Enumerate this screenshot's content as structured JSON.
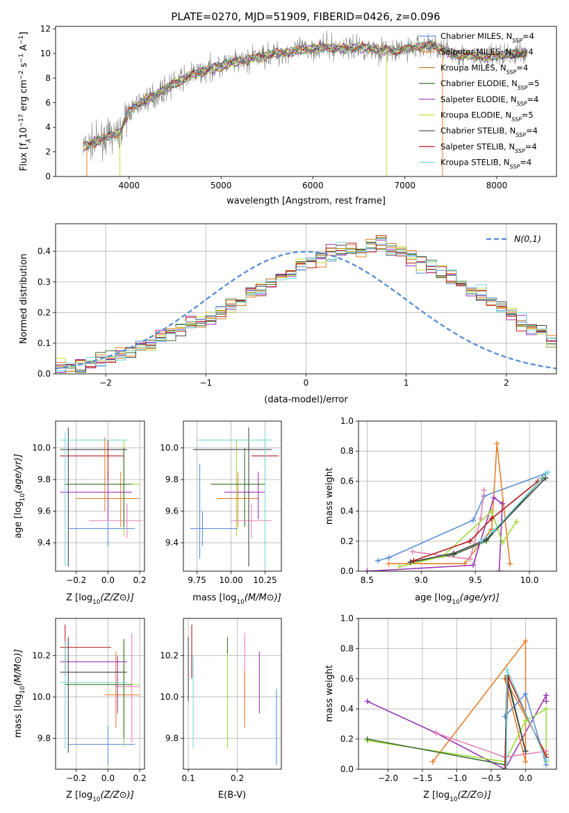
{
  "colors": {
    "Chabrier MILES": "#5b8fd9",
    "Salpeter MILES": "#e87e2a",
    "Kroupa MILES": "#c77a20",
    "Chabrier ELODIE": "#3b6e2f",
    "Salpeter ELODIE": "#9b35b5",
    "Kroupa ELODIE": "#c7dc3a",
    "Chabrier STELIB": "#444444",
    "Salpeter STELIB": "#b21b1b",
    "Kroupa STELIB": "#78d8de",
    "data": "#7f7f7f",
    "grid": "#b0b0b0",
    "gauss": "#5b8fd9",
    "pink": "#e57fb8",
    "lime": "#9ddb3c"
  },
  "chart_data": [
    {
      "id": "spectrum",
      "type": "line",
      "title": "PLATE=0270, MJD=51909, FIBERID=0426, z=0.096",
      "xlabel": "wavelength [Angstrom, rest frame]",
      "ylabel_parts": [
        "Flux [f",
        "λ",
        "10",
        "−17",
        " erg cm",
        "−2",
        " s",
        "−1",
        " A",
        "−1",
        "]"
      ],
      "xlim": [
        3200,
        8650
      ],
      "ylim": [
        0,
        12.2
      ],
      "xticks": [
        "4000",
        "5000",
        "6000",
        "7000",
        "8000"
      ],
      "xtick_values": [
        4000,
        5000,
        6000,
        7000,
        8000
      ],
      "yticks": [
        "0",
        "2",
        "4",
        "6",
        "8",
        "10",
        "12"
      ],
      "ytick_values": [
        0,
        2,
        4,
        6,
        8,
        10,
        12
      ],
      "continuum_x": [
        3500,
        3700,
        3900,
        4000,
        4100,
        4300,
        4500,
        4700,
        4900,
        5100,
        5300,
        5500,
        5700,
        5900,
        6100,
        6300,
        6500,
        6700,
        6900,
        7100,
        7300,
        7500,
        7700,
        7900,
        8100,
        8300
      ],
      "continuum_y": [
        2.4,
        3.0,
        3.6,
        5.3,
        5.9,
        6.7,
        7.6,
        8.3,
        8.8,
        9.2,
        9.5,
        9.9,
        10.1,
        10.3,
        10.5,
        10.4,
        10.5,
        10.3,
        10.2,
        10.5,
        10.7,
        10.0,
        9.8,
        9.7,
        9.9,
        10.1
      ],
      "legend": [
        {
          "name": "Chabrier MILES",
          "nssp": "4"
        },
        {
          "name": "Salpeter MILES",
          "nssp": "4"
        },
        {
          "name": "Kroupa MILES",
          "nssp": "4"
        },
        {
          "name": "Chabrier ELODIE",
          "nssp": "5"
        },
        {
          "name": "Salpeter ELODIE",
          "nssp": "4"
        },
        {
          "name": "Kroupa ELODIE",
          "nssp": "5"
        },
        {
          "name": "Chabrier STELIB",
          "nssp": "4"
        },
        {
          "name": "Salpeter STELIB",
          "nssp": "4"
        },
        {
          "name": "Kroupa STELIB",
          "nssp": "4"
        }
      ],
      "legend_prefix": "N",
      "legend_sub": "SSP",
      "legend_placement": "right"
    },
    {
      "id": "residuals",
      "type": "bar",
      "xlabel": "(data-model)/error",
      "ylabel": "Normed distribution",
      "xlim": [
        -2.5,
        2.5
      ],
      "ylim": [
        0,
        0.49
      ],
      "xticks": [
        "−2",
        "−1",
        "0",
        "1",
        "2"
      ],
      "xtick_values": [
        -2,
        -1,
        0,
        1,
        2
      ],
      "yticks": [
        "0.0",
        "0.1",
        "0.2",
        "0.3",
        "0.4"
      ],
      "ytick_values": [
        0,
        0.1,
        0.2,
        0.3,
        0.4
      ],
      "gauss_label": "N(0,1)",
      "bin_edges_start": -2.5,
      "bin_width": 0.1,
      "base_values": [
        0.02,
        0.025,
        0.03,
        0.035,
        0.045,
        0.055,
        0.065,
        0.075,
        0.085,
        0.1,
        0.12,
        0.13,
        0.15,
        0.165,
        0.17,
        0.18,
        0.2,
        0.22,
        0.24,
        0.26,
        0.28,
        0.3,
        0.32,
        0.34,
        0.355,
        0.37,
        0.38,
        0.39,
        0.4,
        0.41,
        0.4,
        0.42,
        0.43,
        0.41,
        0.4,
        0.38,
        0.36,
        0.35,
        0.33,
        0.31,
        0.29,
        0.27,
        0.26,
        0.24,
        0.22,
        0.2,
        0.17,
        0.15,
        0.13,
        0.11
      ],
      "grid": true
    },
    {
      "id": "age-vs-Z",
      "type": "scatter",
      "xlabel": "Z [log10(Z/Z⊙)]",
      "ylabel": "age [log10(age/yr)]",
      "xlim": [
        -0.33,
        0.23
      ],
      "ylim": [
        9.22,
        10.17
      ],
      "xticks": [
        "−0.2",
        "0.0",
        "0.2"
      ],
      "xtick_values": [
        -0.2,
        0,
        0.2
      ],
      "yticks": [
        "9.4",
        "9.6",
        "9.8",
        "10.0"
      ],
      "ytick_values": [
        9.4,
        9.6,
        9.8,
        10.0
      ]
    },
    {
      "id": "age-vs-mass",
      "type": "scatter",
      "xlabel": "mass [log10(M/M⊙)]",
      "xlim": [
        9.65,
        10.37
      ],
      "ylim": [
        9.22,
        10.17
      ],
      "xticks": [
        "9.75",
        "10.00",
        "10.25"
      ],
      "xtick_values": [
        9.75,
        10.0,
        10.25
      ],
      "yticks": [
        "9.4",
        "9.6",
        "9.8",
        "10.0"
      ],
      "ytick_values": [
        9.4,
        9.6,
        9.8,
        10.0
      ]
    },
    {
      "id": "massweight-vs-age",
      "type": "line",
      "xlabel": "age [log10(age/yr)]",
      "ylabel": "mass weight",
      "xlim": [
        8.42,
        10.25
      ],
      "ylim": [
        0,
        1.0
      ],
      "xticks": [
        "8.5",
        "9.0",
        "9.5",
        "10.0"
      ],
      "xtick_values": [
        8.5,
        9.0,
        9.5,
        10.0
      ],
      "yticks": [
        "0.0",
        "0.2",
        "0.4",
        "0.6",
        "0.8",
        "1.0"
      ],
      "ytick_values": [
        0,
        0.2,
        0.4,
        0.6,
        0.8,
        1.0
      ],
      "grid": true,
      "series": [
        {
          "color": "#5b8fd9",
          "x": [
            8.6,
            8.7,
            9.48,
            9.58,
            10.15
          ],
          "y": [
            0.07,
            0.09,
            0.34,
            0.5,
            0.65
          ]
        },
        {
          "color": "#e87e2a",
          "x": [
            8.7,
            9.4,
            9.65,
            9.7,
            9.82
          ],
          "y": [
            0.05,
            0.05,
            0.28,
            0.85,
            0.05
          ]
        },
        {
          "color": "#e57fb8",
          "x": [
            8.92,
            9.45,
            9.55,
            9.58
          ],
          "y": [
            0.13,
            0.08,
            0.35,
            0.54
          ]
        },
        {
          "color": "#3b6e2f",
          "x": [
            8.9,
            9.3,
            9.6,
            10.12
          ],
          "y": [
            0.06,
            0.11,
            0.2,
            0.62
          ]
        },
        {
          "color": "#9b35b5",
          "x": [
            8.5,
            9.48,
            9.67,
            9.75,
            9.72
          ],
          "y": [
            0.0,
            0.04,
            0.49,
            0.45,
            0.0
          ]
        },
        {
          "color": "#9ddb3c",
          "x": [
            8.8,
            9.2,
            9.65,
            9.75,
            9.88
          ],
          "y": [
            0.03,
            0.1,
            0.4,
            0.19,
            0.33
          ]
        },
        {
          "color": "#444444",
          "x": [
            8.9,
            9.3,
            9.6,
            10.15
          ],
          "y": [
            0.06,
            0.12,
            0.21,
            0.62
          ]
        },
        {
          "color": "#b21b1b",
          "x": [
            8.93,
            9.45,
            9.65,
            10.08
          ],
          "y": [
            0.07,
            0.2,
            0.35,
            0.6
          ]
        },
        {
          "color": "#78d8de",
          "x": [
            9.55,
            9.67,
            10.17
          ],
          "y": [
            0.2,
            0.27,
            0.66
          ]
        }
      ]
    },
    {
      "id": "mass-vs-Z",
      "type": "scatter",
      "xlabel": "Z [log10(Z/Z⊙)]",
      "ylabel": "mass [log10(M/M⊙)]",
      "xlim": [
        -0.33,
        0.23
      ],
      "ylim": [
        9.65,
        10.38
      ],
      "xticks": [
        "−0.2",
        "0.0",
        "0.2"
      ],
      "xtick_values": [
        -0.2,
        0,
        0.2
      ],
      "yticks": [
        "9.8",
        "10.0",
        "10.2"
      ],
      "ytick_values": [
        9.8,
        10.0,
        10.2
      ]
    },
    {
      "id": "mass-vs-EBV",
      "type": "scatter",
      "xlabel": "E(B-V)",
      "xlim": [
        0.09,
        0.29
      ],
      "ylim": [
        9.65,
        10.38
      ],
      "xticks": [
        "0.1",
        "0.2"
      ],
      "xtick_values": [
        0.1,
        0.2
      ],
      "yticks": [
        "9.8",
        "10.0",
        "10.2"
      ],
      "ytick_values": [
        9.8,
        10.0,
        10.2
      ]
    },
    {
      "id": "massweight-vs-Z",
      "type": "line",
      "xlabel": "Z [log10(Z/Z⊙)]",
      "ylabel": "mass weight",
      "xlim": [
        -2.43,
        0.45
      ],
      "ylim": [
        0,
        1.0
      ],
      "xticks": [
        "−2.0",
        "−1.5",
        "−1.0",
        "−0.5",
        "0.0"
      ],
      "xtick_values": [
        -2.0,
        -1.5,
        -1.0,
        -0.5,
        0.0
      ],
      "yticks": [
        "0.0",
        "0.2",
        "0.4",
        "0.6",
        "0.8",
        "1.0"
      ],
      "ytick_values": [
        0,
        0.2,
        0.4,
        0.6,
        0.8,
        1.0
      ],
      "grid": true,
      "series": [
        {
          "color": "#9b35b5",
          "x": [
            -2.3,
            -1.3,
            -0.3,
            0.3,
            0.3
          ],
          "y": [
            0.45,
            0.24,
            0.0,
            0.49,
            0.45
          ]
        },
        {
          "color": "#e87e2a",
          "x": [
            -1.35,
            0.0,
            0.0,
            -0.3,
            0.3
          ],
          "y": [
            0.05,
            0.85,
            0.05,
            0.6,
            0.1
          ]
        },
        {
          "color": "#9ddb3c",
          "x": [
            -2.3,
            -0.3,
            0.0,
            0.3,
            0.3
          ],
          "y": [
            0.19,
            0.05,
            0.32,
            0.4,
            0.05
          ]
        },
        {
          "color": "#3b6e2f",
          "x": [
            -2.3,
            -0.3,
            -0.27,
            0.0
          ],
          "y": [
            0.2,
            0.03,
            0.62,
            0.12
          ]
        },
        {
          "color": "#5b8fd9",
          "x": [
            -0.3,
            0.0,
            0.3
          ],
          "y": [
            0.35,
            0.5,
            0.03
          ]
        },
        {
          "color": "#e57fb8",
          "x": [
            -1.3,
            -0.3,
            0.3
          ],
          "y": [
            0.24,
            0.08,
            0.12
          ]
        },
        {
          "color": "#444444",
          "x": [
            -0.3,
            -0.27,
            0.0
          ],
          "y": [
            0.0,
            0.6,
            0.12
          ]
        },
        {
          "color": "#b21b1b",
          "x": [
            -0.3,
            -0.25,
            0.3
          ],
          "y": [
            0.0,
            0.61,
            0.08
          ]
        },
        {
          "color": "#78d8de",
          "x": [
            -0.28,
            -0.27,
            0.3
          ],
          "y": [
            0.0,
            0.66,
            0.06
          ]
        }
      ]
    }
  ],
  "errorbars": {
    "age_Z": [
      {
        "color": "#5b8fd9",
        "x": 0.0,
        "y": 9.49,
        "xlo": -0.25,
        "xhi": 0.17,
        "ylo": 9.38,
        "yhi": 9.6
      },
      {
        "color": "#e87e2a",
        "x": 0.08,
        "y": 9.68,
        "xlo": -0.2,
        "xhi": 0.2,
        "ylo": 9.5,
        "yhi": 9.85
      },
      {
        "color": "#e57fb8",
        "x": 0.12,
        "y": 9.54,
        "xlo": -0.12,
        "xhi": 0.22,
        "ylo": 9.43,
        "yhi": 9.65
      },
      {
        "color": "#9b35b5",
        "x": 0.0,
        "y": 9.72,
        "xlo": -0.3,
        "xhi": 0.15,
        "ylo": 9.55,
        "yhi": 9.85
      },
      {
        "color": "#9ddb3c",
        "x": 0.1,
        "y": 9.77,
        "xlo": -0.28,
        "xhi": 0.2,
        "ylo": 9.44,
        "yhi": 10.05
      },
      {
        "color": "#3b6e2f",
        "x": 0.1,
        "y": 9.77,
        "xlo": -0.27,
        "xhi": 0.15,
        "ylo": 9.5,
        "yhi": 10.0
      },
      {
        "color": "#444444",
        "x": -0.25,
        "y": 9.99,
        "xlo": -0.3,
        "xhi": 0.12,
        "ylo": 9.25,
        "yhi": 10.13
      },
      {
        "color": "#b21b1b",
        "x": 0.0,
        "y": 9.95,
        "xlo": -0.3,
        "xhi": 0.1,
        "ylo": 9.8,
        "yhi": 10.05
      },
      {
        "color": "#78d8de",
        "x": -0.27,
        "y": 10.05,
        "xlo": -0.3,
        "xhi": 0.12,
        "ylo": 9.25,
        "yhi": 10.1
      },
      {
        "color": "#e87e2a",
        "x": -0.02,
        "y": 9.99,
        "xlo": -0.02,
        "xhi": -0.02,
        "ylo": 9.6,
        "yhi": 10.07
      }
    ],
    "age_mass": [
      {
        "color": "#5b8fd9",
        "x": 9.79,
        "y": 9.49,
        "xlo": 9.7,
        "xhi": 10.05,
        "ylo": 9.38,
        "yhi": 9.6
      },
      {
        "color": "#e87e2a",
        "x": 10.05,
        "y": 9.68,
        "xlo": 9.9,
        "xhi": 10.2,
        "ylo": 9.5,
        "yhi": 9.85
      },
      {
        "color": "#e57fb8",
        "x": 10.15,
        "y": 9.54,
        "xlo": 10.0,
        "xhi": 10.3,
        "ylo": 9.43,
        "yhi": 9.65
      },
      {
        "color": "#9b35b5",
        "x": 10.2,
        "y": 9.72,
        "xlo": 9.95,
        "xhi": 10.25,
        "ylo": 9.55,
        "yhi": 9.85
      },
      {
        "color": "#9ddb3c",
        "x": 10.04,
        "y": 9.77,
        "xlo": 9.85,
        "xhi": 10.25,
        "ylo": 9.44,
        "yhi": 10.05
      },
      {
        "color": "#3b6e2f",
        "x": 10.1,
        "y": 9.77,
        "xlo": 9.85,
        "xhi": 10.25,
        "ylo": 9.5,
        "yhi": 10.0
      },
      {
        "color": "#444444",
        "x": 10.13,
        "y": 9.99,
        "xlo": 9.72,
        "xhi": 10.3,
        "ylo": 9.25,
        "yhi": 10.13
      },
      {
        "color": "#b21b1b",
        "x": 10.25,
        "y": 9.95,
        "xlo": 10.15,
        "xhi": 10.35,
        "ylo": 9.8,
        "yhi": 10.05
      },
      {
        "color": "#78d8de",
        "x": 10.25,
        "y": 10.05,
        "xlo": 9.75,
        "xhi": 10.3,
        "ylo": 9.25,
        "yhi": 10.1
      },
      {
        "color": "#5b8fd9",
        "x": 9.77,
        "y": 9.6,
        "xlo": 9.77,
        "xhi": 9.77,
        "ylo": 9.3,
        "yhi": 9.9
      }
    ],
    "mass_Z": [
      {
        "color": "#5b8fd9",
        "x": 0.0,
        "y": 9.77,
        "xlo": -0.25,
        "xhi": 0.17,
        "ylo": 9.67,
        "yhi": 9.86
      },
      {
        "color": "#e87e2a",
        "x": 0.05,
        "y": 10.01,
        "xlo": -0.02,
        "xhi": 0.2,
        "ylo": 9.85,
        "yhi": 10.22
      },
      {
        "color": "#e57fb8",
        "x": 0.15,
        "y": 10.05,
        "xlo": 0.05,
        "xhi": 0.2,
        "ylo": 9.78,
        "yhi": 10.31
      },
      {
        "color": "#9b35b5",
        "x": 0.06,
        "y": 10.17,
        "xlo": -0.3,
        "xhi": 0.12,
        "ylo": 9.92,
        "yhi": 10.2
      },
      {
        "color": "#9ddb3c",
        "x": 0.1,
        "y": 10.06,
        "xlo": -0.28,
        "xhi": 0.2,
        "ylo": 9.76,
        "yhi": 10.27
      },
      {
        "color": "#3b6e2f",
        "x": 0.1,
        "y": 10.06,
        "xlo": -0.27,
        "xhi": 0.15,
        "ylo": 9.8,
        "yhi": 10.28
      },
      {
        "color": "#444444",
        "x": -0.25,
        "y": 10.12,
        "xlo": -0.3,
        "xhi": 0.12,
        "ylo": 9.73,
        "yhi": 10.29
      },
      {
        "color": "#b21b1b",
        "x": -0.27,
        "y": 10.24,
        "xlo": -0.3,
        "xhi": 0.02,
        "ylo": 10.1,
        "yhi": 10.35
      },
      {
        "color": "#78d8de",
        "x": -0.27,
        "y": 10.07,
        "xlo": -0.3,
        "xhi": 0.12,
        "ylo": 9.75,
        "yhi": 10.27
      }
    ],
    "mass_EBV": [
      {
        "color": "#444444",
        "x": 0.1,
        "y": 10.16,
        "xlo": 0.1,
        "xhi": 0.1,
        "ylo": 9.98,
        "yhi": 10.29
      },
      {
        "color": "#b21b1b",
        "x": 0.107,
        "y": 10.22,
        "xlo": 0.107,
        "xhi": 0.107,
        "ylo": 10.09,
        "yhi": 10.35
      },
      {
        "color": "#78d8de",
        "x": 0.11,
        "y": 10.0,
        "xlo": 0.11,
        "xhi": 0.11,
        "ylo": 9.75,
        "yhi": 10.2
      },
      {
        "color": "#9ddb3c",
        "x": 0.18,
        "y": 10.0,
        "xlo": 0.18,
        "xhi": 0.18,
        "ylo": 9.75,
        "yhi": 10.23
      },
      {
        "color": "#3b6e2f",
        "x": 0.18,
        "y": 10.25,
        "xlo": 0.18,
        "xhi": 0.18,
        "ylo": 10.21,
        "yhi": 10.29
      },
      {
        "color": "#e57fb8",
        "x": 0.215,
        "y": 10.1,
        "xlo": 0.215,
        "xhi": 0.215,
        "ylo": 9.98,
        "yhi": 10.31
      },
      {
        "color": "#e87e2a",
        "x": 0.215,
        "y": 10.0,
        "xlo": 0.215,
        "xhi": 0.215,
        "ylo": 9.85,
        "yhi": 10.13
      },
      {
        "color": "#9b35b5",
        "x": 0.245,
        "y": 10.07,
        "xlo": 0.245,
        "xhi": 0.245,
        "ylo": 9.92,
        "yhi": 10.22
      },
      {
        "color": "#5b8fd9",
        "x": 0.28,
        "y": 9.85,
        "xlo": 0.28,
        "xhi": 0.28,
        "ylo": 9.67,
        "yhi": 10.04
      }
    ]
  }
}
